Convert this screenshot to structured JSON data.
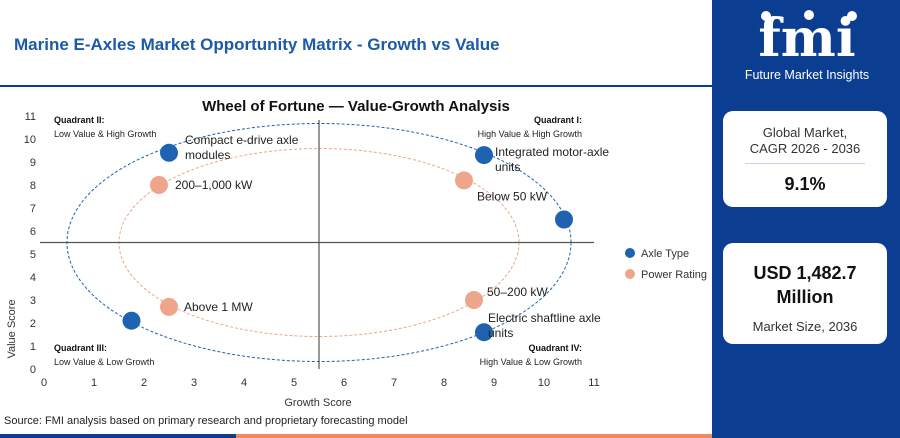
{
  "header": {
    "title": "Marine E-Axles Market Opportunity Matrix - Growth vs Value"
  },
  "logo": {
    "mark": "fmi",
    "tagline": "Future Market Insights"
  },
  "cards": {
    "cagr_label": "Global Market, CAGR 2026 - 2036",
    "cagr_label_line1": "Global Market,",
    "cagr_label_line2": "CAGR 2026 - 2036",
    "cagr_value": "9.1%",
    "size_value_line1": "USD 1,482.7",
    "size_value_line2": "Million",
    "size_label": "Market Size, 2036"
  },
  "footer": {
    "source": "Source: FMI analysis based on primary research and proprietary forecasting model"
  },
  "colors": {
    "brand_navy": "#0b3d91",
    "axle_type": "#1f63b0",
    "power_rating": "#eea58c",
    "footer_accent": "#f08a5d"
  },
  "chart_data": {
    "type": "scatter",
    "title": "Wheel of Fortune — Value-Growth Analysis",
    "xlabel": "Growth Score",
    "ylabel": "Value Score",
    "xlim": [
      0,
      11
    ],
    "ylim": [
      0,
      11
    ],
    "xticks": [
      0,
      1,
      2,
      3,
      4,
      5,
      6,
      7,
      8,
      9,
      10,
      11
    ],
    "yticks": [
      0,
      1,
      2,
      3,
      4,
      5,
      6,
      7,
      8,
      9,
      10,
      11
    ],
    "divider_x": 5.5,
    "divider_y": 5.5,
    "quadrants": [
      {
        "name": "Quadrant II:",
        "desc": "Low Value & High Growth"
      },
      {
        "name": "Quadrant I:",
        "desc": "High Value & High Growth"
      },
      {
        "name": "Quadrant III:",
        "desc": "Low Value & Low Growth"
      },
      {
        "name": "Quadrant IV:",
        "desc": "High Value & Low Growth"
      }
    ],
    "legend": {
      "placement": "right",
      "entries": [
        "Axle Type",
        "Power Rating"
      ]
    },
    "series": [
      {
        "name": "Axle Type",
        "color": "#1f63b0",
        "points": [
          {
            "label": "Compact e-drive axle modules",
            "x": 2.5,
            "y": 9.4
          },
          {
            "label": "Integrated motor-axle units",
            "x": 8.8,
            "y": 9.3
          },
          {
            "label": "",
            "x": 10.4,
            "y": 6.5
          },
          {
            "label": "",
            "x": 1.75,
            "y": 2.1
          },
          {
            "label": "Electric shaftline axle units",
            "x": 8.8,
            "y": 1.6
          }
        ]
      },
      {
        "name": "Power Rating",
        "color": "#eea58c",
        "points": [
          {
            "label": "200–1,000 kW",
            "x": 2.3,
            "y": 8.0
          },
          {
            "label": "Below 50 kW",
            "x": 8.4,
            "y": 8.2
          },
          {
            "label": "Above 1 MW",
            "x": 2.5,
            "y": 2.7
          },
          {
            "label": "50–200 kW",
            "x": 8.6,
            "y": 3.0
          }
        ]
      }
    ]
  }
}
